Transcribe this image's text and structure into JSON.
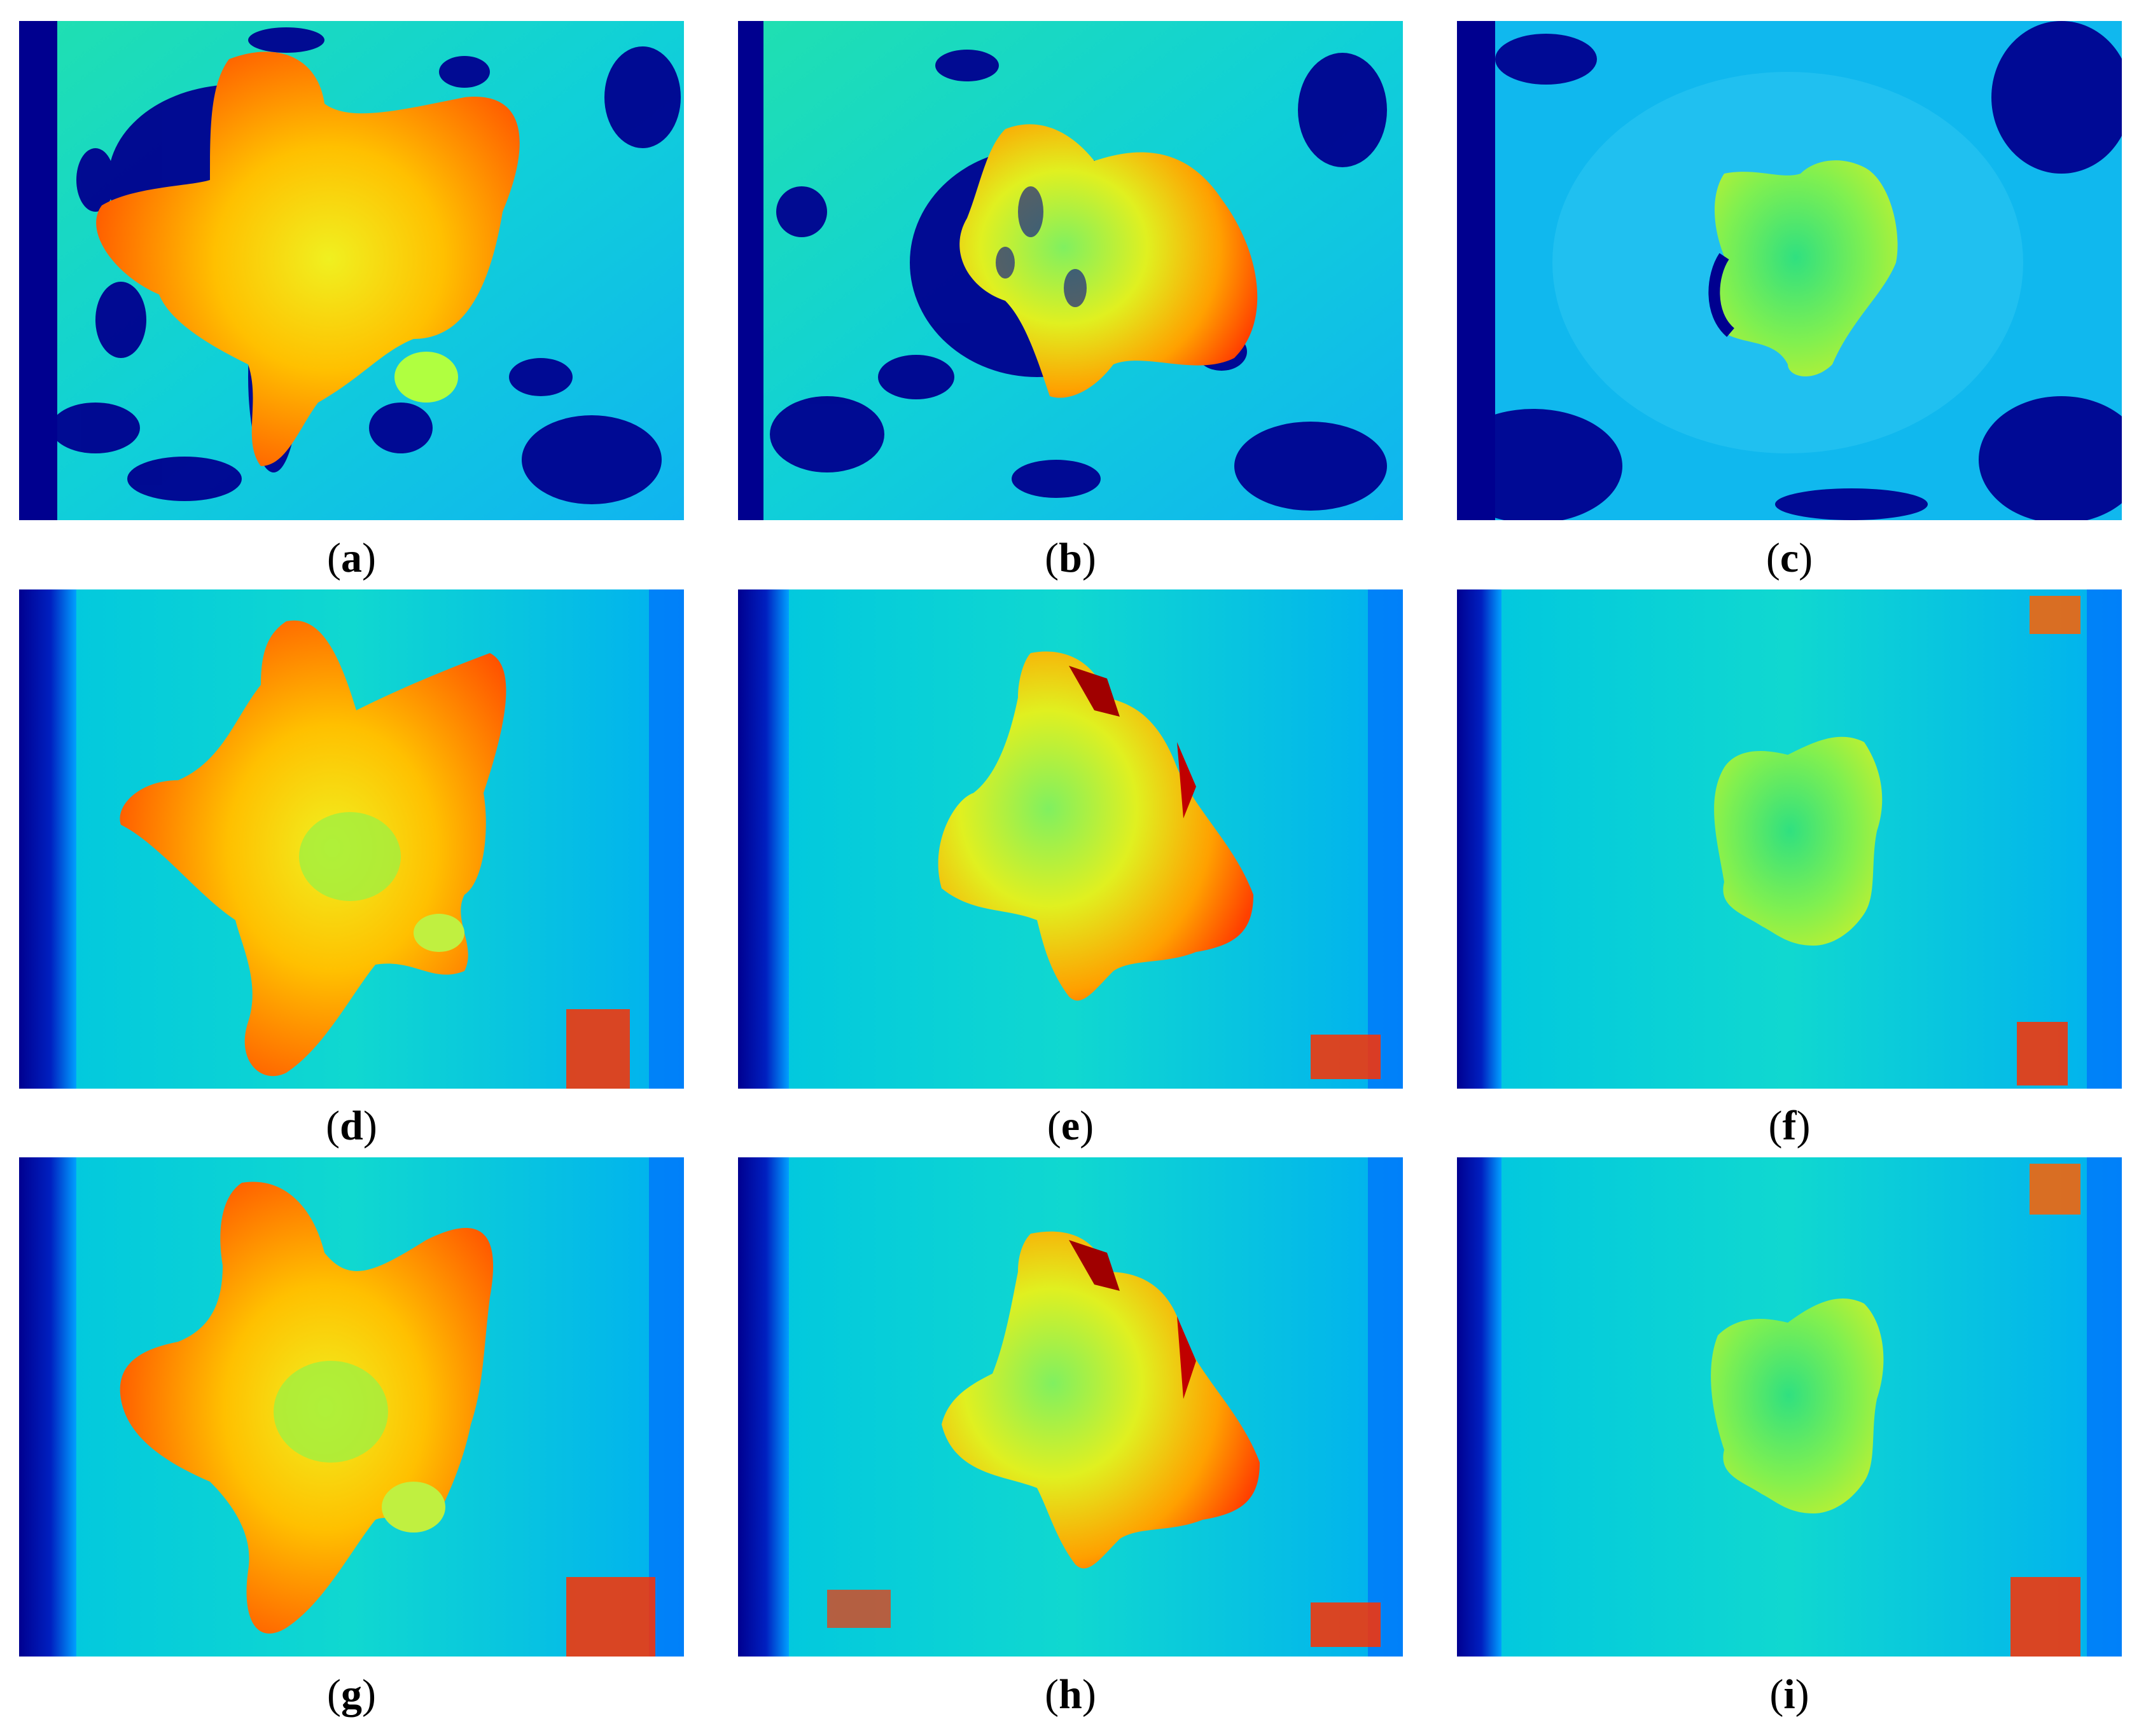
{
  "figure": {
    "panels": [
      {
        "id": "a",
        "label": "a"
      },
      {
        "id": "b",
        "label": "b"
      },
      {
        "id": "c",
        "label": "c"
      },
      {
        "id": "d",
        "label": "d"
      },
      {
        "id": "e",
        "label": "e"
      },
      {
        "id": "f",
        "label": "f"
      },
      {
        "id": "g",
        "label": "g"
      },
      {
        "id": "h",
        "label": "h"
      },
      {
        "id": "i",
        "label": "i"
      }
    ],
    "colormap": [
      "#00008f",
      "#0040ff",
      "#00c0ff",
      "#40ffbf",
      "#bfff40",
      "#ffc000",
      "#ff4000",
      "#8f0000"
    ]
  }
}
